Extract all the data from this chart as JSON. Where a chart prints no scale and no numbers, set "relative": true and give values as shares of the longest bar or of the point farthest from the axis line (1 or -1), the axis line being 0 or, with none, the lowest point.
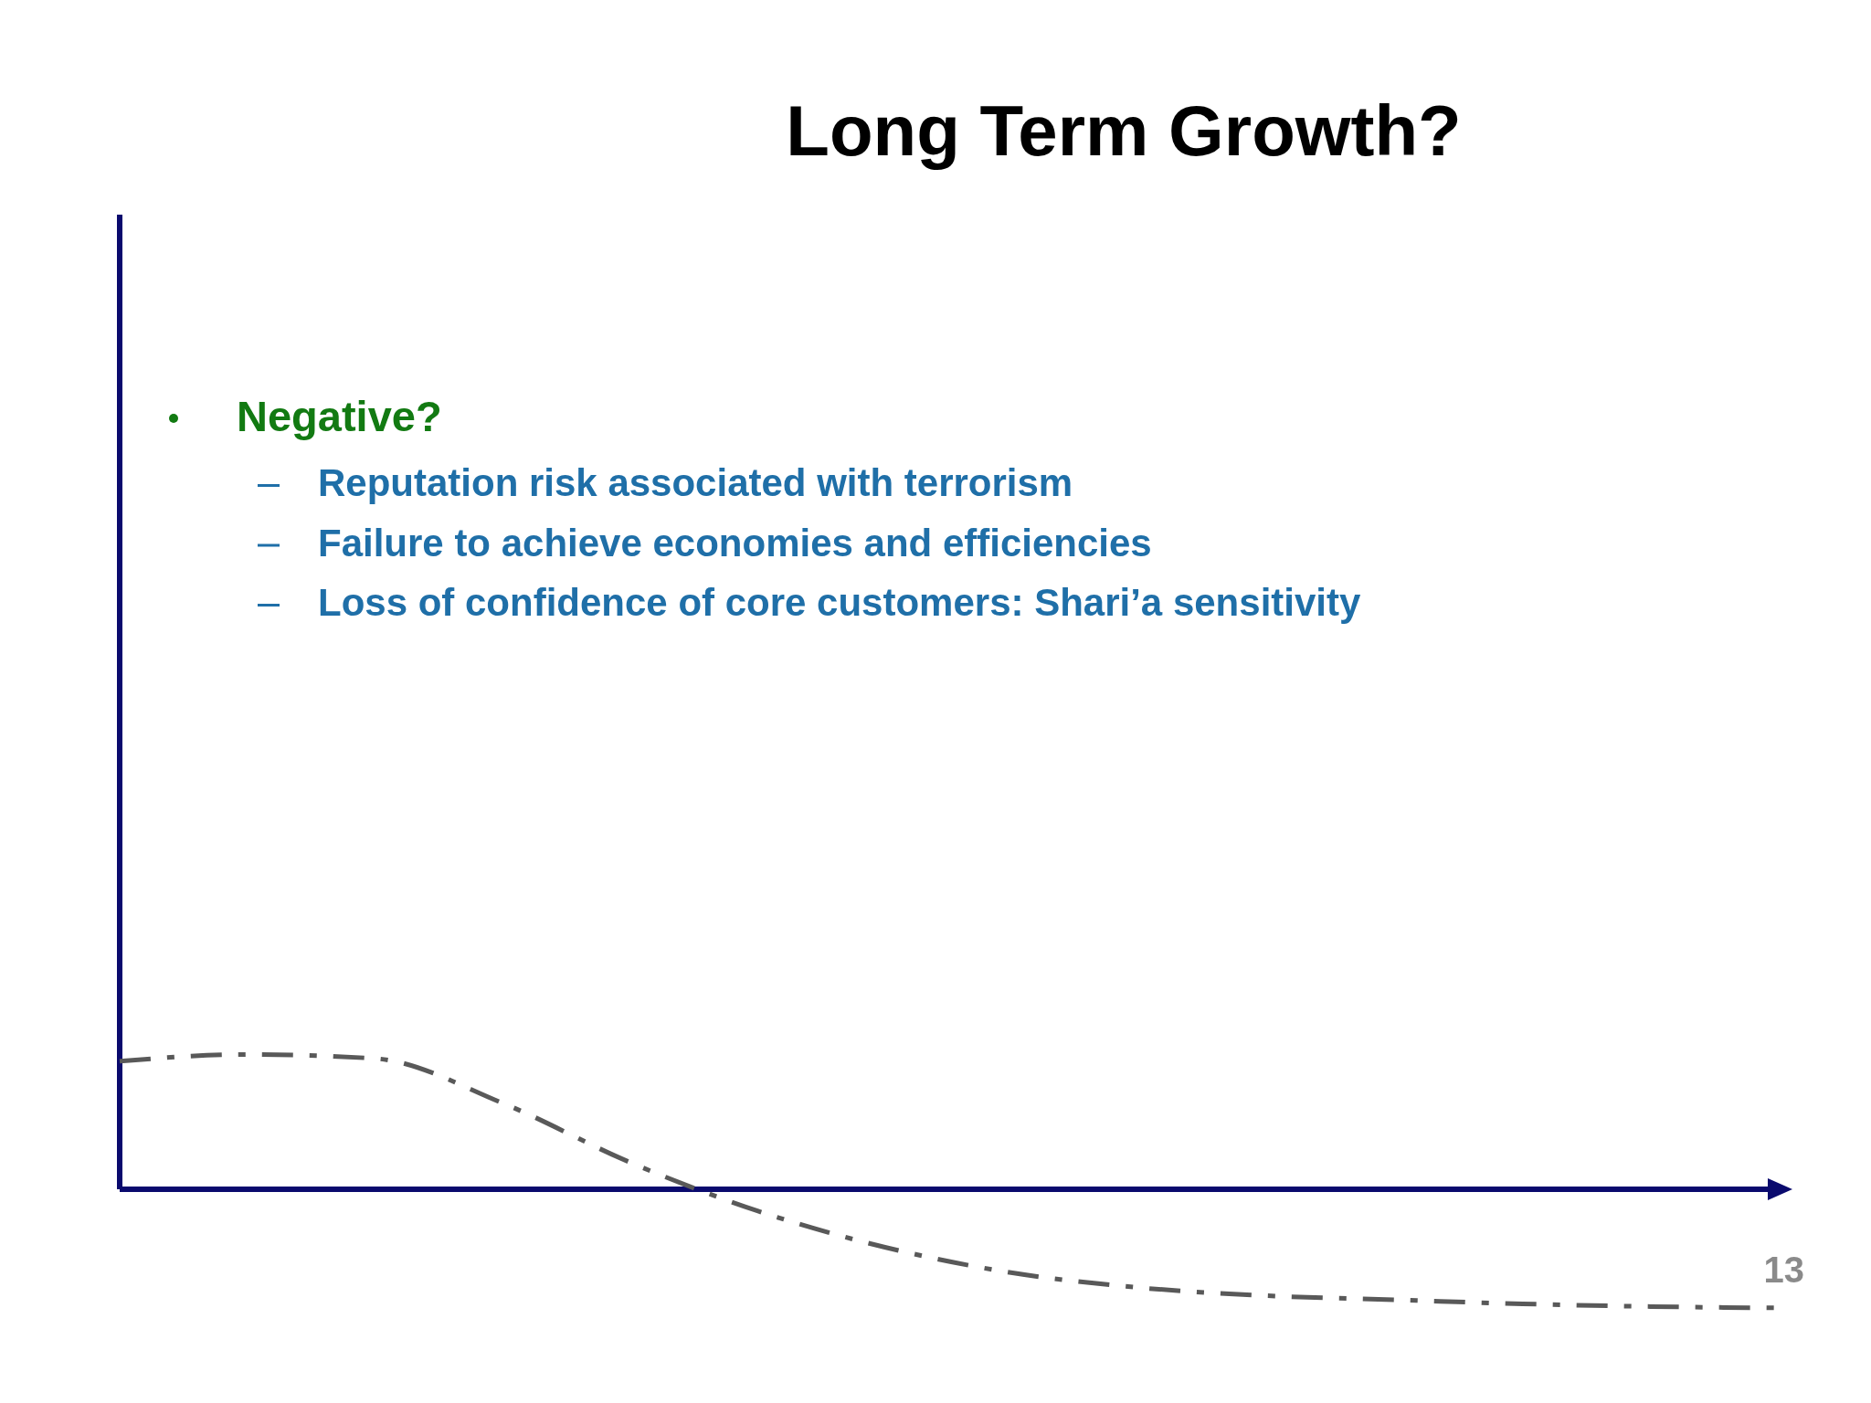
{
  "chart_data": {
    "type": "line",
    "title": "Long Term Growth?",
    "relative": true,
    "categories": [
      null,
      null,
      null,
      null,
      null,
      null,
      null,
      null,
      null,
      null,
      null,
      null,
      null,
      null
    ],
    "series": [
      {
        "color": "#595959",
        "values": [
          0.95,
          1,
          0.97,
          0.64,
          0.2,
          -0.16,
          -0.43,
          -0.62,
          -0.73,
          -0.79,
          -0.82,
          -0.85,
          -0.87,
          -0.88
        ]
      }
    ],
    "line_style": "dashed",
    "marker": "none",
    "ref_lines": [
      {
        "axis": "y",
        "value": 0,
        "color": "#0a0a6e"
      }
    ],
    "annotations": [
      "Negative?",
      "Reputation risk associated with terrorism",
      "Failure to achieve economies and efficiencies",
      "Loss of confidence of core customers: Shari’a sensitivity",
      "13"
    ]
  }
}
